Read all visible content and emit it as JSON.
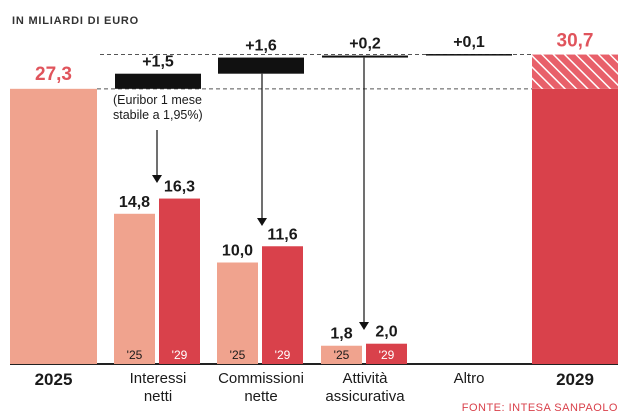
{
  "chart_data": {
    "type": "waterfall",
    "unit_label": "IN MILIARDI DI EURO",
    "source": "FONTE: INTESA SANPAOLO",
    "start": {
      "label": "2025",
      "value": 27.3,
      "value_text": "27,3"
    },
    "end": {
      "label": "2029",
      "value": 30.7,
      "value_text": "30,7"
    },
    "steps": [
      {
        "label_lines": [
          "Interessi",
          "netti"
        ],
        "delta": 1.5,
        "delta_text": "+1,5",
        "note_lines": [
          "(Euribor 1 mese",
          "stabile a 1,95%)"
        ],
        "pair": [
          {
            "year": "'25",
            "value": 14.8,
            "text": "14,8"
          },
          {
            "year": "'29",
            "value": 16.3,
            "text": "16,3"
          }
        ]
      },
      {
        "label_lines": [
          "Commissioni",
          "nette"
        ],
        "delta": 1.6,
        "delta_text": "+1,6",
        "pair": [
          {
            "year": "'25",
            "value": 10.0,
            "text": "10,0"
          },
          {
            "year": "'29",
            "value": 11.6,
            "text": "11,6"
          }
        ]
      },
      {
        "label_lines": [
          "Attività",
          "assicurativa"
        ],
        "delta": 0.2,
        "delta_text": "+0,2",
        "pair": [
          {
            "year": "'25",
            "value": 1.8,
            "text": "1,8"
          },
          {
            "year": "'29",
            "value": 2.0,
            "text": "2,0"
          }
        ]
      },
      {
        "label_lines": [
          "Altro"
        ],
        "delta": 0.1,
        "delta_text": "+0,1"
      }
    ],
    "colors": {
      "light": "#f0a38e",
      "dark": "#d9414b",
      "delta": "#111111",
      "accent_text": "#e0545c"
    }
  }
}
